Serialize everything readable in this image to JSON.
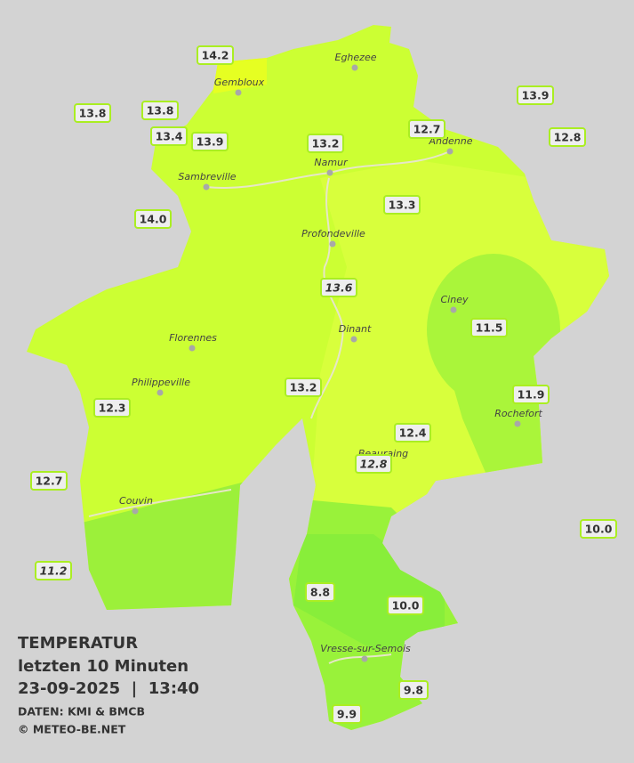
{
  "legend": {
    "title": "TEMPERATUR",
    "period": "letzten 10 Minuten",
    "timestamp": "23-09-2025  |  13:40",
    "source": "DATEN: KMI & BMCB",
    "copyright": "© METEO-BE.NET"
  },
  "cities": [
    "Eghezee",
    "Gembloux",
    "Andenne",
    "Namur",
    "Sambreville",
    "Profondeville",
    "Ciney",
    "Dinant",
    "Florennes",
    "Philippeville",
    "Rochefort",
    "Beauraing",
    "Couvin",
    "Vresse-sur-Semois"
  ],
  "stations": [
    {
      "value": 14.2,
      "label": "14.2"
    },
    {
      "value": 13.8,
      "label": "13.8"
    },
    {
      "value": 13.8,
      "label": "13.8"
    },
    {
      "value": 13.4,
      "label": "13.4"
    },
    {
      "value": 13.9,
      "label": "13.9"
    },
    {
      "value": 13.2,
      "label": "13.2"
    },
    {
      "value": 12.7,
      "label": "12.7"
    },
    {
      "value": 13.9,
      "label": "13.9"
    },
    {
      "value": 12.8,
      "label": "12.8"
    },
    {
      "value": 14,
      "label": "14.0"
    },
    {
      "value": 13.3,
      "label": "13.3"
    },
    {
      "value": 13.6,
      "label": "13.6"
    },
    {
      "value": 11.5,
      "label": "11.5"
    },
    {
      "value": 13.2,
      "label": "13.2"
    },
    {
      "value": 11.9,
      "label": "11.9"
    },
    {
      "value": 12.3,
      "label": "12.3"
    },
    {
      "value": 12.4,
      "label": "12.4"
    },
    {
      "value": 12.8,
      "label": "12.8"
    },
    {
      "value": 12.7,
      "label": "12.7"
    },
    {
      "value": 10,
      "label": "10.0"
    },
    {
      "value": 11.2,
      "label": "11.2"
    },
    {
      "value": 8.8,
      "label": "8.8"
    },
    {
      "value": 10,
      "label": "10.0"
    },
    {
      "value": 9.8,
      "label": "9.8"
    },
    {
      "value": 9.9,
      "label": "9.9"
    }
  ]
}
